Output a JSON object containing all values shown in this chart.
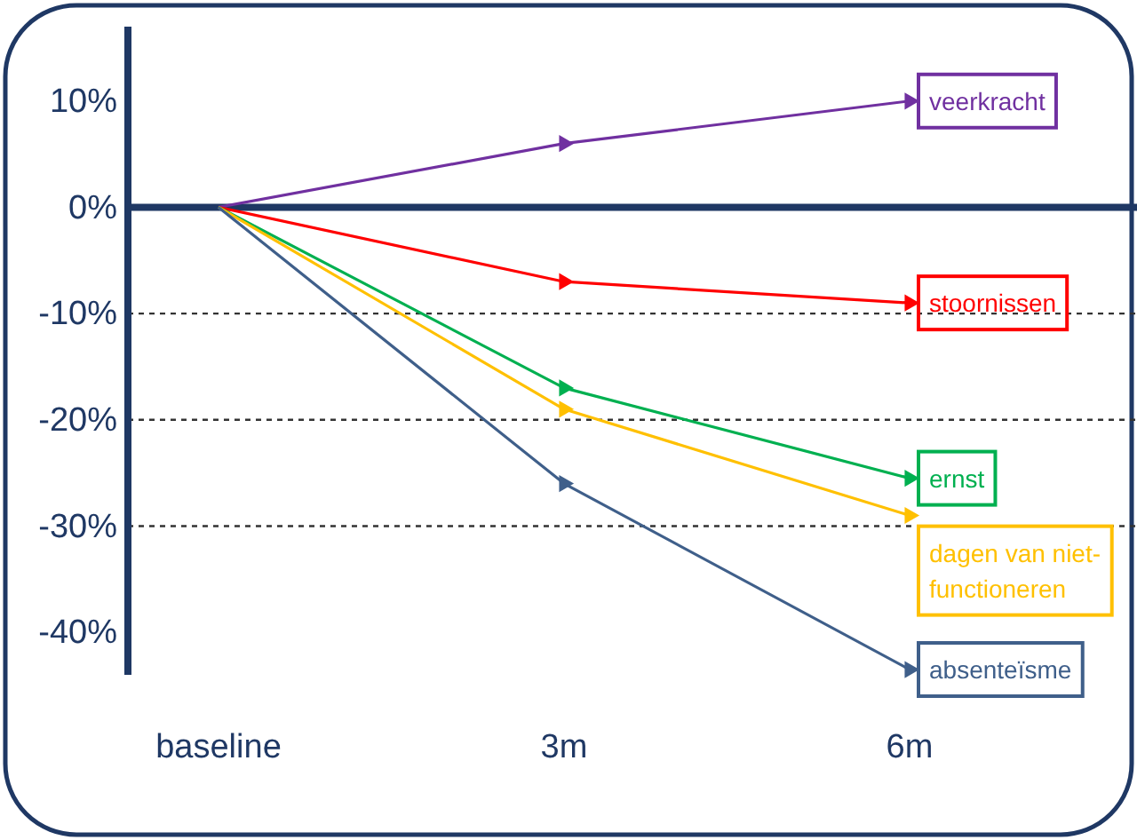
{
  "chart_data": {
    "type": "line",
    "categories": [
      "baseline",
      "3m",
      "6m"
    ],
    "series": [
      {
        "name": "veerkracht",
        "color": "#7030a0",
        "values": [
          0,
          6,
          10
        ]
      },
      {
        "name": "stoornissen",
        "color": "#ff0000",
        "values": [
          0,
          -7,
          -9
        ]
      },
      {
        "name": "ernst",
        "color": "#00b050",
        "values": [
          0,
          -17,
          -25.5
        ]
      },
      {
        "name": "dagen van niet-functioneren",
        "color": "#ffc000",
        "values": [
          0,
          -19,
          -29
        ]
      },
      {
        "name": "absenteïsme",
        "color": "#3f5f8a",
        "values": [
          0,
          -26,
          -43.5
        ]
      }
    ],
    "ylim": [
      -44,
      17
    ],
    "yticks": [
      {
        "value": 10,
        "label": "10%"
      },
      {
        "value": 0,
        "label": "0%"
      },
      {
        "value": -10,
        "label": "-10%"
      },
      {
        "value": -20,
        "label": "-20%"
      },
      {
        "value": -30,
        "label": "-30%"
      },
      {
        "value": -40,
        "label": "-40%"
      }
    ],
    "ref_lines": [
      {
        "axis": "y",
        "value": 0,
        "color": "#1f3864",
        "line_style": "solid"
      },
      {
        "axis": "y",
        "value": -10,
        "color": "#333333",
        "line_style": "dashed"
      },
      {
        "axis": "y",
        "value": -20,
        "color": "#333333",
        "line_style": "dashed"
      },
      {
        "axis": "y",
        "value": -30,
        "color": "#333333",
        "line_style": "dashed"
      }
    ],
    "line_style": "solid",
    "marker": "triangle"
  }
}
